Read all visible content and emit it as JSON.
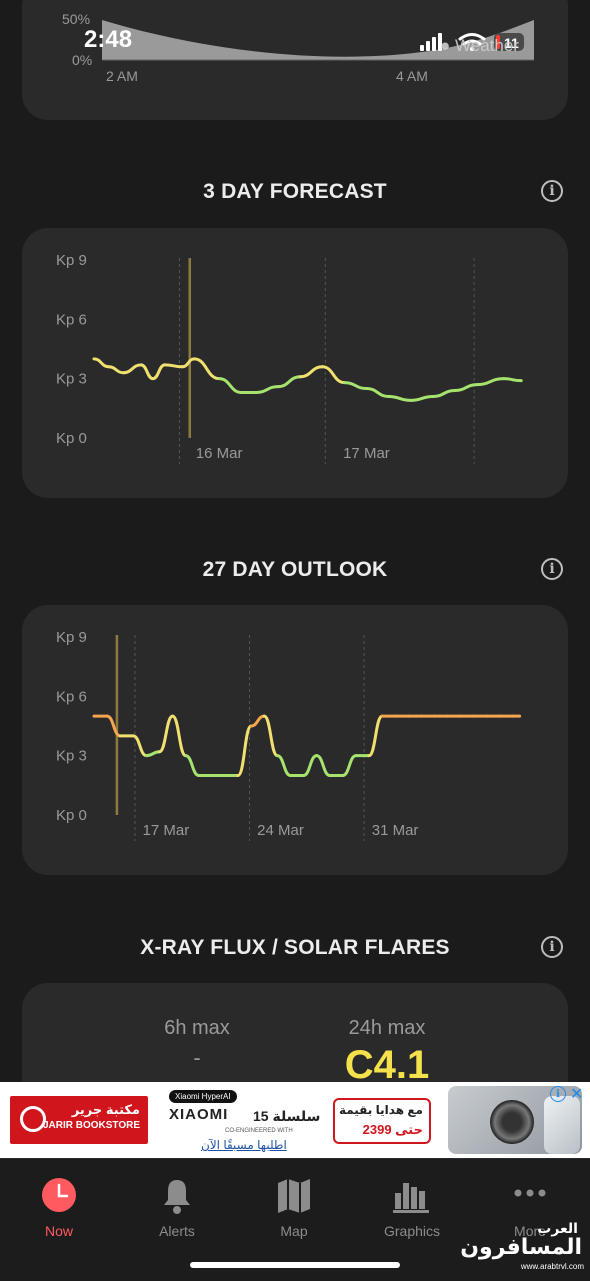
{
  "status_bar": {
    "time": "2:48",
    "battery": "11",
    "weather_badge": "Weather"
  },
  "top_card": {
    "y_ticks": [
      "50%",
      "0%"
    ],
    "x_ticks": [
      "2 AM",
      "4 AM"
    ]
  },
  "sections": {
    "forecast_title": "3 DAY FORECAST",
    "outlook_title": "27 DAY OUTLOOK",
    "xray_title": "X-RAY FLUX / SOLAR FLARES"
  },
  "chart_data": [
    {
      "type": "line",
      "y_ticks": [
        "Kp 9",
        "Kp 6",
        "Kp 3",
        "Kp 0"
      ],
      "ylim": [
        0,
        9
      ],
      "x_labels": [
        "16 Mar",
        "17 Mar"
      ],
      "xlim": [
        0,
        3
      ],
      "x_label_positions": [
        0.65,
        1.65
      ],
      "day_marks": [
        0.58,
        1.57,
        2.58
      ],
      "now_x": 0.65,
      "x": [
        0,
        0.1,
        0.2,
        0.32,
        0.4,
        0.48,
        0.6,
        0.68,
        0.85,
        1.0,
        1.1,
        1.25,
        1.4,
        1.55,
        1.7,
        1.85,
        2.0,
        2.15,
        2.3,
        2.45,
        2.6,
        2.78,
        2.9
      ],
      "values": [
        4.0,
        3.6,
        3.3,
        3.7,
        3.0,
        3.7,
        3.6,
        4.0,
        3.0,
        2.3,
        2.3,
        2.6,
        3.1,
        3.6,
        2.8,
        2.5,
        2.1,
        1.9,
        2.1,
        2.4,
        2.7,
        3.0,
        2.9
      ],
      "grid": "dashed day separators",
      "legend": "none"
    },
    {
      "type": "line",
      "y_ticks": [
        "Kp 9",
        "Kp 6",
        "Kp 3",
        "Kp 0"
      ],
      "ylim": [
        0,
        9
      ],
      "x_labels": [
        "17 Mar",
        "24 Mar",
        "31 Mar"
      ],
      "xlim": [
        0,
        27
      ],
      "x_label_positions": [
        2.6,
        9.6,
        16.6
      ],
      "day_marks": [
        2.5,
        9.5,
        16.5
      ],
      "now_x": 1.4,
      "x": [
        0,
        0.8,
        1.6,
        2.4,
        3.2,
        4.0,
        4.8,
        5.6,
        6.4,
        7.2,
        8.0,
        8.8,
        9.6,
        10.4,
        11.2,
        12.0,
        12.8,
        13.6,
        14.4,
        15.2,
        16.0,
        16.8,
        17.6,
        18.4,
        19.2,
        20.0,
        20.8,
        21.6,
        22.4,
        23.2,
        24.0,
        24.8,
        25.6,
        26.0
      ],
      "values": [
        5.0,
        5.0,
        4.0,
        4.0,
        3.0,
        3.2,
        5.0,
        3.0,
        2.0,
        2.0,
        2.0,
        2.0,
        4.5,
        5.0,
        3.0,
        2.0,
        2.0,
        3.0,
        2.0,
        2.0,
        3.0,
        3.0,
        5.0,
        5.0,
        5.0,
        5.0,
        5.0,
        5.0,
        5.0,
        5.0,
        5.0,
        5.0,
        5.0,
        5.0
      ],
      "grid": "dashed week separators",
      "legend": "none"
    }
  ],
  "xray": {
    "max6_label": "6h max",
    "max6_value": "-",
    "max24_label": "24h max",
    "max24_value": "C4.1"
  },
  "ad": {
    "left_ar": "مكتبة جرير",
    "left_en": "JARIR BOOKSTORE",
    "pill": "Xiaomi HyperAI",
    "brand": "XIAOMI",
    "brand_ar": "سلسلة 15",
    "co": "CO-ENGINEERED WITH",
    "cta": "اطلبها مسبقًا الآن",
    "price_l1": "مع هدايا بقيمة",
    "price_l2": "حتى 2399"
  },
  "tabs": [
    {
      "label": "Now",
      "icon": "clock-icon",
      "active": true
    },
    {
      "label": "Alerts",
      "icon": "bell-icon",
      "active": false
    },
    {
      "label": "Map",
      "icon": "map-icon",
      "active": false
    },
    {
      "label": "Graphics",
      "icon": "bar-chart-icon",
      "active": false
    },
    {
      "label": "More",
      "icon": "more-icon",
      "active": false
    }
  ],
  "watermark": {
    "line1": "العرب",
    "line2": "المسافرون",
    "line3": "www.arabtrvl.com"
  },
  "colors": {
    "accent": "#ff5a5f",
    "card": "#2a2a2a",
    "kp_high": "#f5a550",
    "kp_mid": "#f0e070",
    "kp_low": "#a6e36e",
    "now_line": "#8c7b3c",
    "c_class": "#f4e14b"
  }
}
